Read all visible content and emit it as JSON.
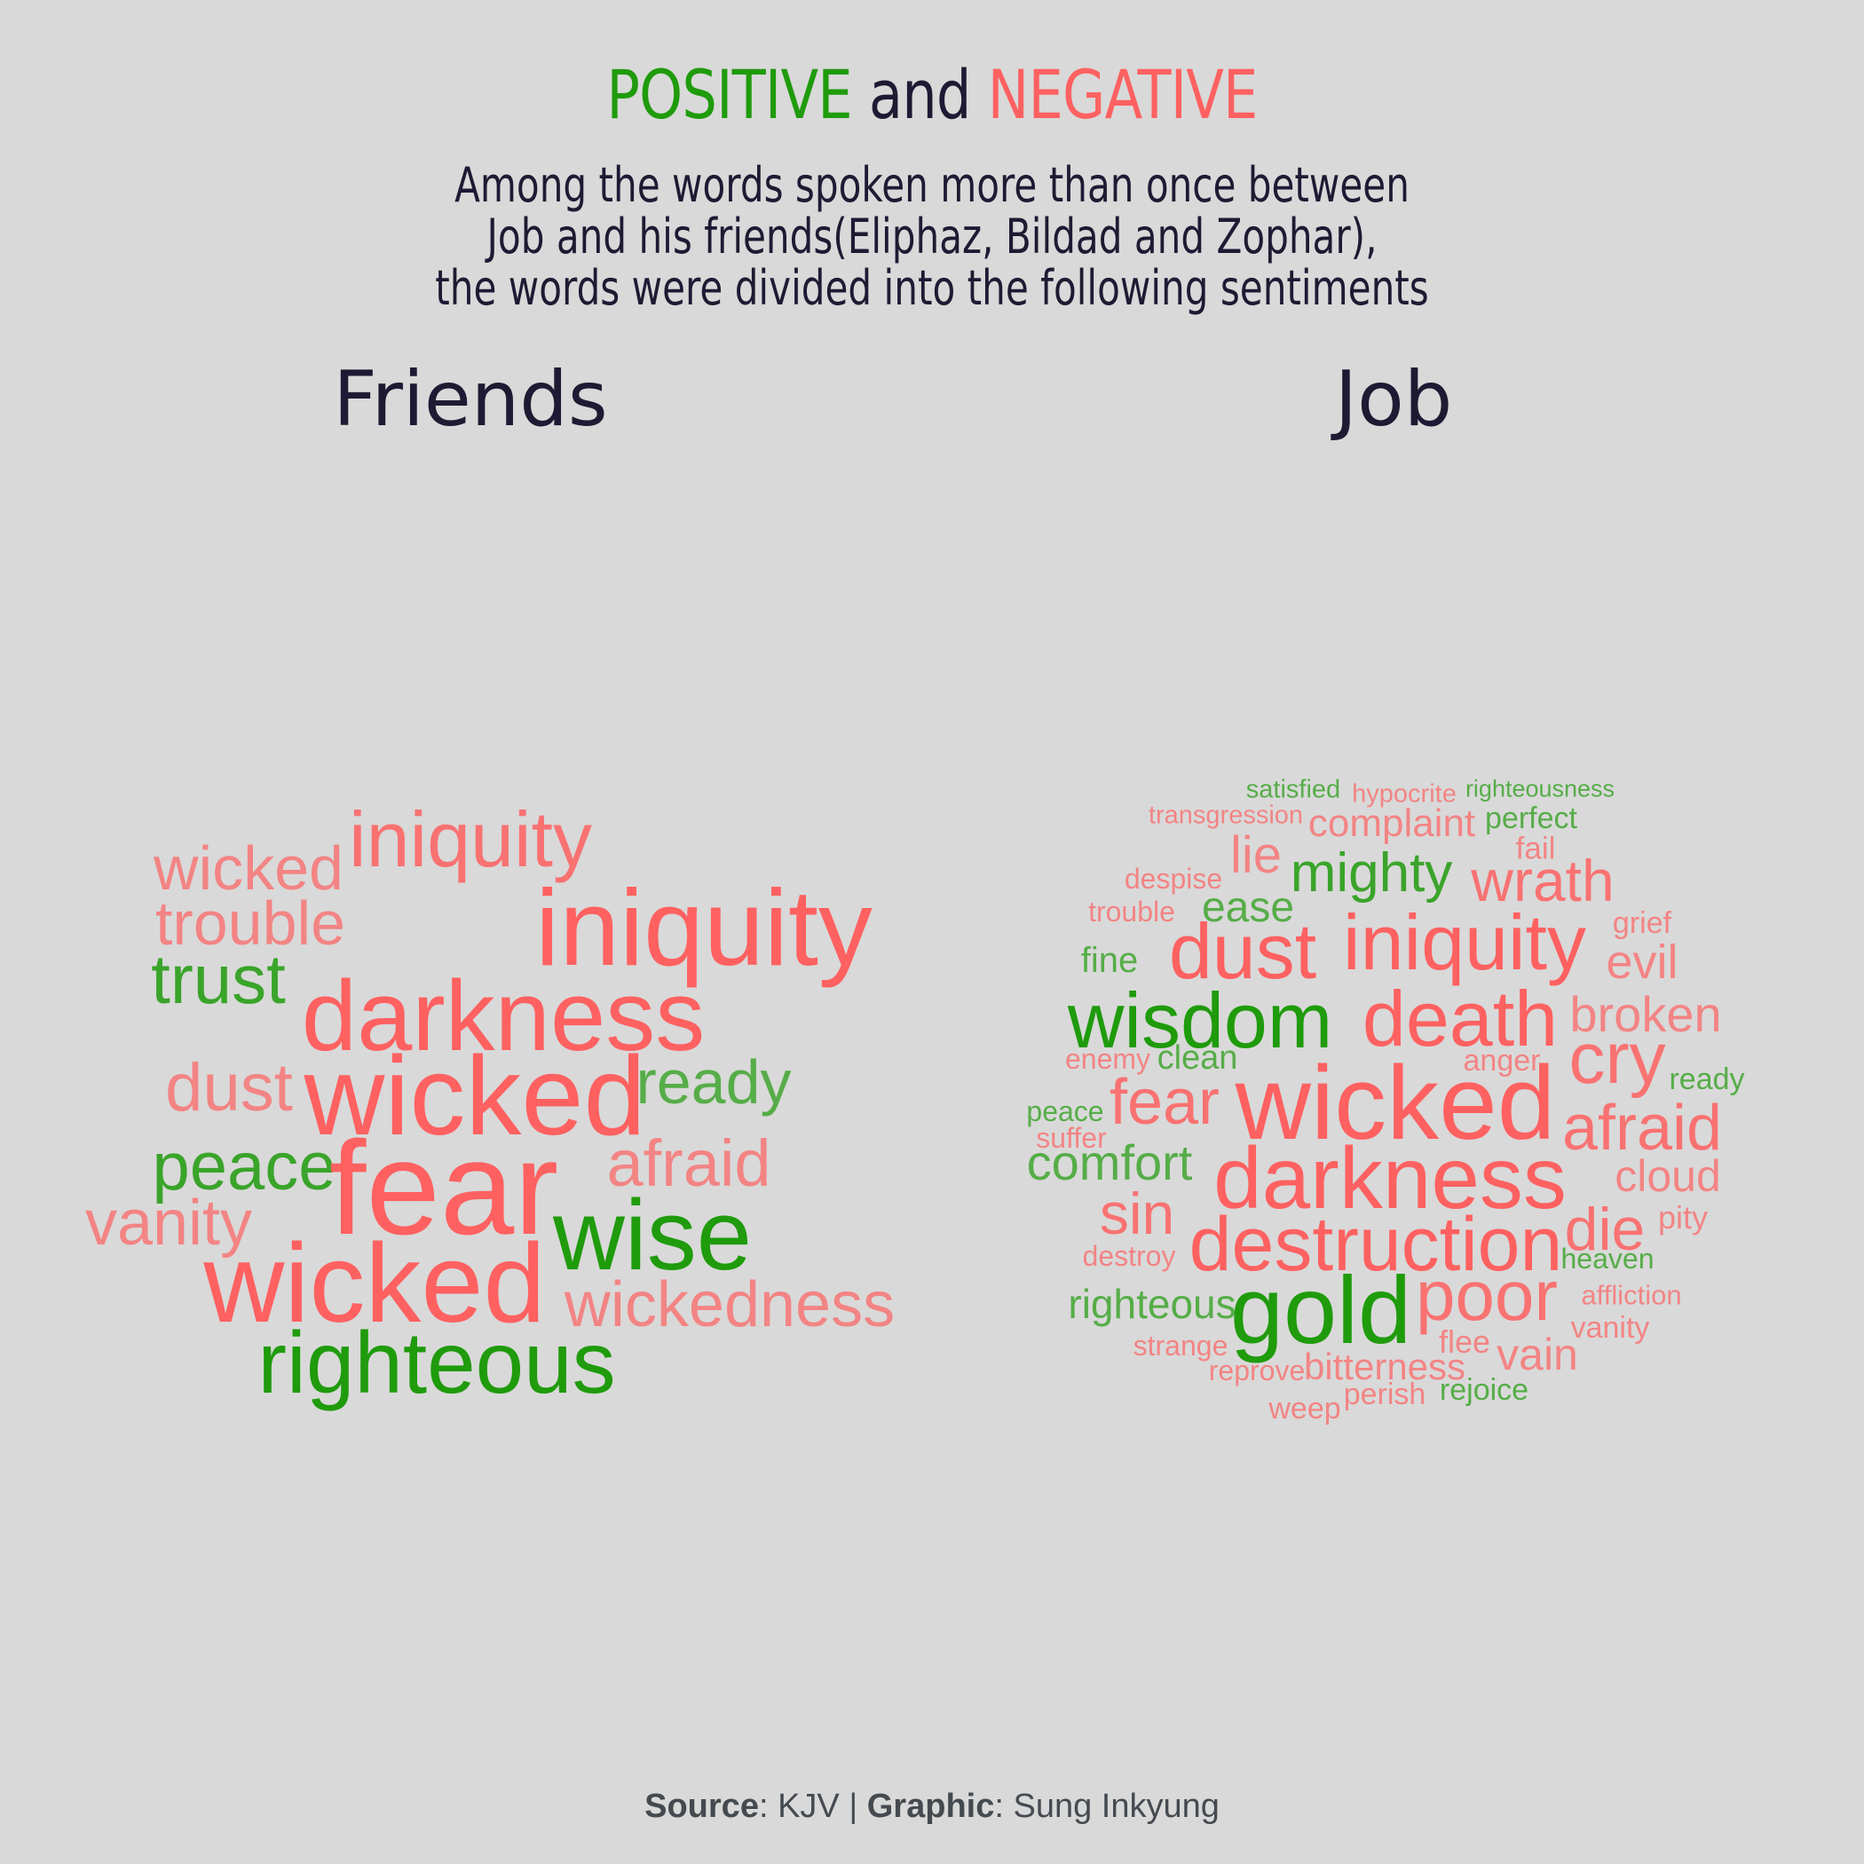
{
  "colors": {
    "positive": "#1f9b0c",
    "negative": "#ff6161",
    "text": "#1f1a33",
    "background": "#d9d9d9",
    "footer": "#454a50"
  },
  "title": {
    "positive": "POSITIVE",
    "and": "and",
    "negative": "NEGATIVE"
  },
  "subtitle": {
    "line1": "Among the words spoken more than once between",
    "line2": "Job and his friends(Eliphaz, Bildad and Zophar),",
    "line3": "the words were divided into the following sentiments"
  },
  "panels": {
    "friends": "Friends",
    "job": "Job"
  },
  "friends_words": [
    {
      "word": "iniquity",
      "sentiment": "negative",
      "weight": 5
    },
    {
      "word": "wicked",
      "sentiment": "negative",
      "weight": 3
    },
    {
      "word": "trouble",
      "sentiment": "negative",
      "weight": 3
    },
    {
      "word": "iniquity",
      "sentiment": "negative",
      "weight": 7
    },
    {
      "word": "trust",
      "sentiment": "positive",
      "weight": 4
    },
    {
      "word": "darkness",
      "sentiment": "negative",
      "weight": 7
    },
    {
      "word": "dust",
      "sentiment": "negative",
      "weight": 3
    },
    {
      "word": "wicked",
      "sentiment": "negative",
      "weight": 7
    },
    {
      "word": "ready",
      "sentiment": "positive",
      "weight": 3
    },
    {
      "word": "peace",
      "sentiment": "positive",
      "weight": 4
    },
    {
      "word": "afraid",
      "sentiment": "negative",
      "weight": 3
    },
    {
      "word": "fear",
      "sentiment": "negative",
      "weight": 9
    },
    {
      "word": "vanity",
      "sentiment": "negative",
      "weight": 3
    },
    {
      "word": "wise",
      "sentiment": "positive",
      "weight": 7
    },
    {
      "word": "wicked",
      "sentiment": "negative",
      "weight": 8
    },
    {
      "word": "wickedness",
      "sentiment": "negative",
      "weight": 3
    },
    {
      "word": "righteous",
      "sentiment": "positive",
      "weight": 7
    }
  ],
  "job_words": [
    {
      "word": "satisfied",
      "sentiment": "positive",
      "weight": 1
    },
    {
      "word": "hypocrite",
      "sentiment": "negative",
      "weight": 1
    },
    {
      "word": "righteousness",
      "sentiment": "positive",
      "weight": 1
    },
    {
      "word": "transgression",
      "sentiment": "negative",
      "weight": 1
    },
    {
      "word": "complaint",
      "sentiment": "negative",
      "weight": 2
    },
    {
      "word": "perfect",
      "sentiment": "positive",
      "weight": 1
    },
    {
      "word": "lie",
      "sentiment": "negative",
      "weight": 2
    },
    {
      "word": "fail",
      "sentiment": "negative",
      "weight": 1
    },
    {
      "word": "despise",
      "sentiment": "negative",
      "weight": 1
    },
    {
      "word": "mighty",
      "sentiment": "positive",
      "weight": 3
    },
    {
      "word": "wrath",
      "sentiment": "negative",
      "weight": 3
    },
    {
      "word": "trouble",
      "sentiment": "negative",
      "weight": 1
    },
    {
      "word": "ease",
      "sentiment": "positive",
      "weight": 2
    },
    {
      "word": "grief",
      "sentiment": "negative",
      "weight": 1
    },
    {
      "word": "fine",
      "sentiment": "positive",
      "weight": 1
    },
    {
      "word": "dust",
      "sentiment": "negative",
      "weight": 5
    },
    {
      "word": "iniquity",
      "sentiment": "negative",
      "weight": 5
    },
    {
      "word": "evil",
      "sentiment": "negative",
      "weight": 2
    },
    {
      "word": "wisdom",
      "sentiment": "positive",
      "weight": 5
    },
    {
      "word": "death",
      "sentiment": "negative",
      "weight": 5
    },
    {
      "word": "broken",
      "sentiment": "negative",
      "weight": 2
    },
    {
      "word": "enemy",
      "sentiment": "negative",
      "weight": 1
    },
    {
      "word": "clean",
      "sentiment": "positive",
      "weight": 1
    },
    {
      "word": "anger",
      "sentiment": "negative",
      "weight": 1
    },
    {
      "word": "cry",
      "sentiment": "negative",
      "weight": 4
    },
    {
      "word": "ready",
      "sentiment": "positive",
      "weight": 1
    },
    {
      "word": "fear",
      "sentiment": "negative",
      "weight": 3
    },
    {
      "word": "wicked",
      "sentiment": "negative",
      "weight": 7
    },
    {
      "word": "peace",
      "sentiment": "positive",
      "weight": 1
    },
    {
      "word": "afraid",
      "sentiment": "negative",
      "weight": 3
    },
    {
      "word": "suffer",
      "sentiment": "negative",
      "weight": 1
    },
    {
      "word": "comfort",
      "sentiment": "positive",
      "weight": 2
    },
    {
      "word": "darkness",
      "sentiment": "negative",
      "weight": 6
    },
    {
      "word": "cloud",
      "sentiment": "negative",
      "weight": 2
    },
    {
      "word": "sin",
      "sentiment": "negative",
      "weight": 3
    },
    {
      "word": "die",
      "sentiment": "negative",
      "weight": 3
    },
    {
      "word": "pity",
      "sentiment": "negative",
      "weight": 1
    },
    {
      "word": "destroy",
      "sentiment": "negative",
      "weight": 1
    },
    {
      "word": "destruction",
      "sentiment": "negative",
      "weight": 5
    },
    {
      "word": "heaven",
      "sentiment": "positive",
      "weight": 1
    },
    {
      "word": "righteous",
      "sentiment": "positive",
      "weight": 2
    },
    {
      "word": "gold",
      "sentiment": "positive",
      "weight": 6
    },
    {
      "word": "poor",
      "sentiment": "negative",
      "weight": 4
    },
    {
      "word": "affliction",
      "sentiment": "negative",
      "weight": 1
    },
    {
      "word": "vanity",
      "sentiment": "negative",
      "weight": 1
    },
    {
      "word": "strange",
      "sentiment": "negative",
      "weight": 1
    },
    {
      "word": "flee",
      "sentiment": "negative",
      "weight": 1
    },
    {
      "word": "vain",
      "sentiment": "negative",
      "weight": 2
    },
    {
      "word": "reprove",
      "sentiment": "negative",
      "weight": 1
    },
    {
      "word": "bitterness",
      "sentiment": "negative",
      "weight": 2
    },
    {
      "word": "rejoice",
      "sentiment": "positive",
      "weight": 1
    },
    {
      "word": "perish",
      "sentiment": "negative",
      "weight": 1
    },
    {
      "word": "weep",
      "sentiment": "negative",
      "weight": 1
    }
  ],
  "footer": {
    "source_label": "Source",
    "source_value": ": KJV | ",
    "graphic_label": "Graphic",
    "graphic_value": ": Sung Inkyung"
  }
}
